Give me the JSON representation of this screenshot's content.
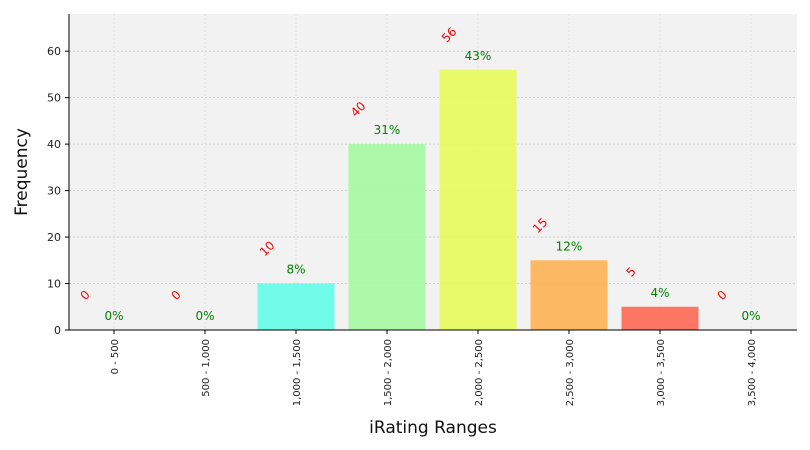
{
  "chart_data": {
    "type": "bar",
    "xlabel": "iRating Ranges",
    "ylabel": "Frequency",
    "categories": [
      "0 - 500",
      "500 - 1,000",
      "1,000 - 1,500",
      "1,500 - 2,000",
      "2,000 - 2,500",
      "2,500 - 3,000",
      "3,000 - 3,500",
      "3,500 - 4,000"
    ],
    "values": [
      0,
      0,
      10,
      40,
      56,
      15,
      5,
      0
    ],
    "percent_labels": [
      "0%",
      "0%",
      "8%",
      "31%",
      "43%",
      "12%",
      "4%",
      "0%"
    ],
    "count_labels": [
      "0",
      "0",
      "10",
      "40",
      "56",
      "15",
      "5",
      "0"
    ],
    "bar_colors": [
      "#00e8d0",
      "#4af0b8",
      "#5bfde8",
      "#a0fc9c",
      "#e6fc52",
      "#ffae4a",
      "#ff5f4a",
      "#ff2020"
    ],
    "count_label_color": "#ff0000",
    "percent_label_color": "#008000",
    "y_ticks": [
      0,
      10,
      20,
      30,
      40,
      50,
      60
    ],
    "ylim": [
      0,
      68
    ],
    "grid": true,
    "plot_background": "#f2f2f2"
  }
}
